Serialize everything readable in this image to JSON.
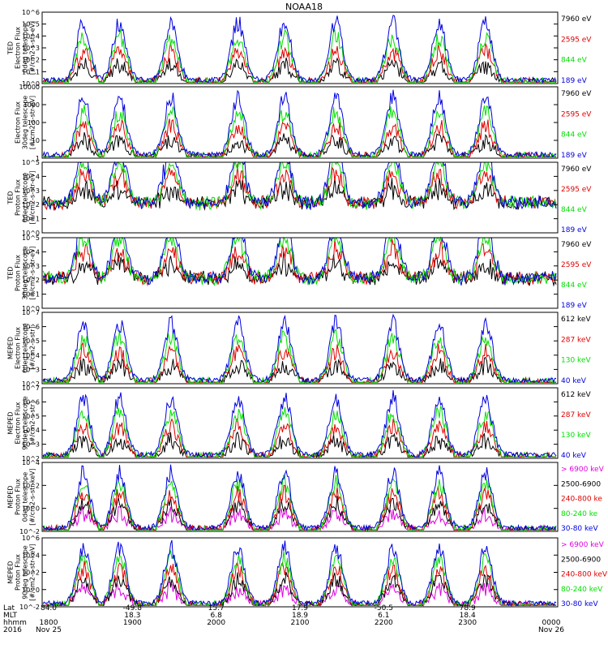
{
  "title": "NOAA18",
  "colors": {
    "black": "#000000",
    "red": "#e00000",
    "green": "#00e000",
    "blue": "#0000e0",
    "magenta": "#e000e0"
  },
  "footer": {
    "row_labels": [
      "Lat",
      "MLT",
      "hhmm",
      "2016"
    ],
    "ticks": [
      {
        "lat": "84.0",
        "mlt": "",
        "hhmm": "1800",
        "date": "Nov 25"
      },
      {
        "lat": "-49.8",
        "mlt": "18.3",
        "hhmm": "1900",
        "date": ""
      },
      {
        "lat": "15.7",
        "mlt": "6.8",
        "hhmm": "2000",
        "date": ""
      },
      {
        "lat": "17.9",
        "mlt": "18.9",
        "hhmm": "2100",
        "date": ""
      },
      {
        "lat": "-50.5",
        "mlt": "6.1",
        "hhmm": "2200",
        "date": ""
      },
      {
        "lat": "78.9",
        "mlt": "18.4",
        "hhmm": "2300",
        "date": ""
      },
      {
        "lat": "",
        "mlt": "",
        "hhmm": "0000",
        "date": "Nov 26"
      }
    ]
  },
  "chart_data": [
    {
      "type": "line",
      "ylabel": [
        "TED",
        "Electron Flux",
        "0deg telescope",
        "[#/cm2-s-str-eV]"
      ],
      "yscale": "log",
      "yticks": [
        {
          "exp": 6,
          "label": "10^6"
        },
        {
          "exp": 5,
          "label": "10^5"
        },
        {
          "exp": 4,
          "label": "10^4"
        },
        {
          "exp": 3,
          "label": "10^3"
        },
        {
          "exp": 2,
          "label": "10^2"
        },
        {
          "exp": 1,
          "label": "10^1"
        },
        {
          "exp": 0,
          "label": "10^0"
        }
      ],
      "series": [
        {
          "name": "7960 eV",
          "color": "black"
        },
        {
          "name": "2595 eV",
          "color": "red"
        },
        {
          "name": "844 eV",
          "color": "green"
        },
        {
          "name": "189 eV",
          "color": "blue"
        }
      ]
    },
    {
      "type": "line",
      "ylabel": [
        "",
        "Electron Flux",
        "30deg telescope",
        "[#/cm2-s-str-eV]"
      ],
      "yscale": "log",
      "yticks": [
        {
          "exp": 4,
          "label": "10000"
        },
        {
          "exp": 3,
          "label": "1000"
        },
        {
          "exp": 2,
          "label": "100"
        },
        {
          "exp": 1,
          "label": "10"
        },
        {
          "exp": 0,
          "label": "1"
        }
      ],
      "series": [
        {
          "name": "7960 eV",
          "color": "black"
        },
        {
          "name": "2595 eV",
          "color": "red"
        },
        {
          "name": "844 eV",
          "color": "green"
        },
        {
          "name": "189 eV",
          "color": "blue"
        }
      ]
    },
    {
      "type": "line",
      "ylabel": [
        "TED",
        "Proton Flux",
        "0deg telescope",
        "[#/cm2-s-str-eV]"
      ],
      "yscale": "log",
      "yticks": [
        {
          "exp": 5,
          "label": "10^5"
        },
        {
          "exp": 4,
          "label": "10^4"
        },
        {
          "exp": 3,
          "label": "10^3"
        },
        {
          "exp": 2,
          "label": "10^2"
        },
        {
          "exp": 1,
          "label": "10^1"
        },
        {
          "exp": 0,
          "label": "10^0"
        }
      ],
      "series": [
        {
          "name": "7960 eV",
          "color": "black"
        },
        {
          "name": "2595 eV",
          "color": "red"
        },
        {
          "name": "844 eV",
          "color": "green"
        },
        {
          "name": "189 eV",
          "color": "blue"
        }
      ]
    },
    {
      "type": "line",
      "ylabel": [
        "TED",
        "Proton Flux",
        "30deg telescope",
        "[#/cm2-s-str-eV]"
      ],
      "yscale": "log",
      "yticks": [
        {
          "exp": 5,
          "label": "10^5"
        },
        {
          "exp": 4,
          "label": "10^4"
        },
        {
          "exp": 3,
          "label": "10^3"
        },
        {
          "exp": 2,
          "label": "10^2"
        },
        {
          "exp": 1,
          "label": "10^1"
        },
        {
          "exp": 0,
          "label": "10^0"
        }
      ],
      "series": [
        {
          "name": "7960 eV",
          "color": "black"
        },
        {
          "name": "2595 eV",
          "color": "red"
        },
        {
          "name": "844 eV",
          "color": "green"
        },
        {
          "name": "189 eV",
          "color": "blue"
        }
      ]
    },
    {
      "type": "line",
      "ylabel": [
        "MEPED",
        "Electron Flux",
        "0deg telescope",
        "[#/cm2-s-str]"
      ],
      "yscale": "log",
      "yticks": [
        {
          "exp": 7,
          "label": "10^7"
        },
        {
          "exp": 6,
          "label": "10^6"
        },
        {
          "exp": 5,
          "label": "10^5"
        },
        {
          "exp": 4,
          "label": "10^4"
        },
        {
          "exp": 3,
          "label": "10^3"
        },
        {
          "exp": 2,
          "label": "10^2"
        }
      ],
      "series": [
        {
          "name": "612 keV",
          "color": "black"
        },
        {
          "name": "287 keV",
          "color": "red"
        },
        {
          "name": "130 keV",
          "color": "green"
        },
        {
          "name": "40 keV",
          "color": "blue"
        }
      ]
    },
    {
      "type": "line",
      "ylabel": [
        "MEPED",
        "Electron Flux",
        "90deg telescope",
        "[#/cm2-s-str]"
      ],
      "yscale": "log",
      "yticks": [
        {
          "exp": 7,
          "label": "10^7"
        },
        {
          "exp": 6,
          "label": "10^6"
        },
        {
          "exp": 5,
          "label": "10^5"
        },
        {
          "exp": 4,
          "label": "10^4"
        },
        {
          "exp": 3,
          "label": "10^3"
        },
        {
          "exp": 2,
          "label": "10^2"
        }
      ],
      "series": [
        {
          "name": "612 keV",
          "color": "black"
        },
        {
          "name": "287 keV",
          "color": "red"
        },
        {
          "name": "130 keV",
          "color": "green"
        },
        {
          "name": "40 keV",
          "color": "blue"
        }
      ]
    },
    {
      "type": "line",
      "ylabel": [
        "MEPED",
        "Proton Flux",
        "0deg telescope",
        "[#/cm2-s-str-keV]"
      ],
      "yscale": "log",
      "yticks": [
        {
          "exp": 4,
          "label": "10^4"
        },
        {
          "exp": 2,
          "label": "10^2"
        },
        {
          "exp": 0,
          "label": "10^0"
        },
        {
          "exp": -2,
          "label": "10^-2"
        }
      ],
      "series": [
        {
          "name": "> 6900 keV",
          "color": "magenta"
        },
        {
          "name": "2500-6900",
          "color": "black"
        },
        {
          "name": "240-800 ke",
          "color": "red"
        },
        {
          "name": "80-240 ke",
          "color": "green"
        },
        {
          "name": "30-80 keV",
          "color": "blue"
        }
      ]
    },
    {
      "type": "line",
      "ylabel": [
        "MEPED",
        "Proton Flux",
        "90deg telescope",
        "[#/cm2-s-str-keV]"
      ],
      "yscale": "log",
      "yticks": [
        {
          "exp": 6,
          "label": "10^6"
        },
        {
          "exp": 4,
          "label": "10^4"
        },
        {
          "exp": 2,
          "label": "10^2"
        },
        {
          "exp": 0,
          "label": "10^0"
        },
        {
          "exp": -2,
          "label": "10^-2"
        }
      ],
      "series": [
        {
          "name": "> 6900 keV",
          "color": "magenta"
        },
        {
          "name": "2500-6900",
          "color": "black"
        },
        {
          "name": "240-800 keV",
          "color": "red"
        },
        {
          "name": "80-240 keV",
          "color": "green"
        },
        {
          "name": "30-80 keV",
          "color": "blue"
        }
      ]
    }
  ]
}
